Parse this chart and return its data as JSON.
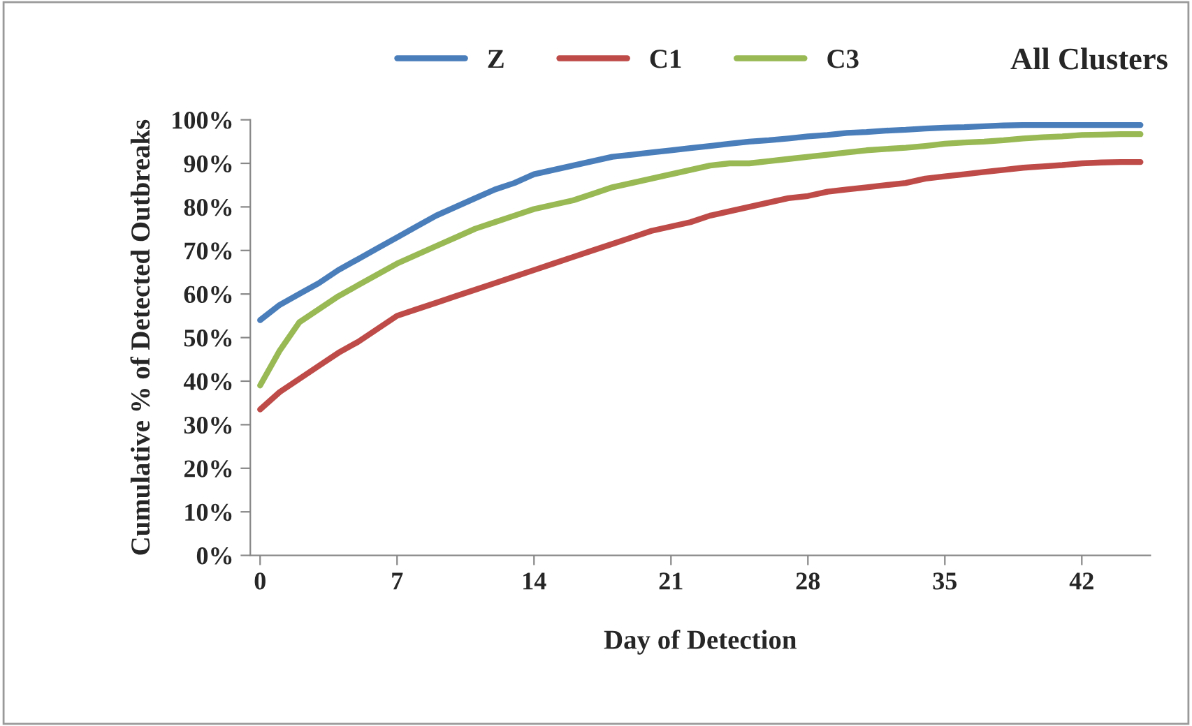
{
  "chart_data": {
    "type": "line",
    "title": "All Clusters",
    "xlabel": "Day of Detection",
    "ylabel": "Cumulative % of Detected Outbreaks",
    "x": [
      0,
      1,
      2,
      3,
      4,
      5,
      6,
      7,
      8,
      9,
      10,
      11,
      12,
      13,
      14,
      15,
      16,
      17,
      18,
      19,
      20,
      21,
      22,
      23,
      24,
      25,
      26,
      27,
      28,
      29,
      30,
      31,
      32,
      33,
      34,
      35,
      36,
      37,
      38,
      39,
      40,
      41,
      42,
      43,
      44,
      45
    ],
    "series": [
      {
        "name": "Z",
        "color": "#4a7ebb",
        "values": [
          54,
          57.5,
          60,
          62.5,
          65.5,
          68,
          70.5,
          73,
          75.5,
          78,
          80,
          82,
          84,
          85.5,
          87.5,
          88.5,
          89.5,
          90.5,
          91.5,
          92,
          92.5,
          93,
          93.5,
          94,
          94.5,
          95,
          95.3,
          95.7,
          96.2,
          96.5,
          97,
          97.2,
          97.5,
          97.7,
          98,
          98.2,
          98.3,
          98.5,
          98.7,
          98.8,
          98.8,
          98.8,
          98.8,
          98.8,
          98.8,
          98.8
        ]
      },
      {
        "name": "C1",
        "color": "#be4b48",
        "values": [
          33.5,
          37.5,
          40.5,
          43.5,
          46.5,
          49,
          52,
          55,
          56.5,
          58,
          59.5,
          61,
          62.5,
          64,
          65.5,
          67,
          68.5,
          70,
          71.5,
          73,
          74.5,
          75.5,
          76.5,
          78,
          79,
          80,
          81,
          82,
          82.5,
          83.5,
          84,
          84.5,
          85,
          85.5,
          86.5,
          87,
          87.5,
          88,
          88.5,
          89,
          89.3,
          89.6,
          90,
          90.2,
          90.3,
          90.3
        ]
      },
      {
        "name": "C3",
        "color": "#98b954",
        "values": [
          39,
          47,
          53.5,
          56.5,
          59.5,
          62,
          64.5,
          67,
          69,
          71,
          73,
          75,
          76.5,
          78,
          79.5,
          80.5,
          81.5,
          83,
          84.5,
          85.5,
          86.5,
          87.5,
          88.5,
          89.5,
          90,
          90,
          90.5,
          91,
          91.5,
          92,
          92.5,
          93,
          93.3,
          93.6,
          94,
          94.5,
          94.8,
          95,
          95.3,
          95.7,
          96,
          96.2,
          96.5,
          96.6,
          96.7,
          96.7
        ]
      }
    ],
    "xlim": [
      -0.5,
      45.5
    ],
    "xticks": [
      0,
      7,
      14,
      21,
      28,
      35,
      42
    ],
    "ylim": [
      0,
      100
    ],
    "yticks": [
      {
        "value": 0,
        "label": "0%"
      },
      {
        "value": 10,
        "label": "10%"
      },
      {
        "value": 20,
        "label": "20%"
      },
      {
        "value": 30,
        "label": "30%"
      },
      {
        "value": 40,
        "label": "40%"
      },
      {
        "value": 50,
        "label": "50%"
      },
      {
        "value": 60,
        "label": "60%"
      },
      {
        "value": 70,
        "label": "70%"
      },
      {
        "value": 80,
        "label": "80%"
      },
      {
        "value": 90,
        "label": "90%"
      },
      {
        "value": 100,
        "label": "100%"
      }
    ],
    "legend": "top",
    "grid": false,
    "marker": "none",
    "line_style": "solid"
  }
}
